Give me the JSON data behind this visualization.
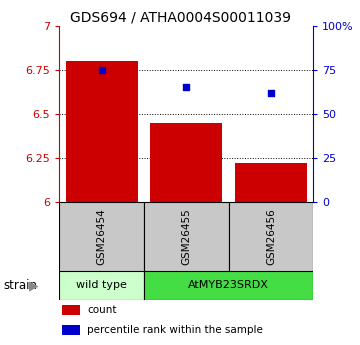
{
  "title": "GDS694 / ATHA0004S00011039",
  "samples": [
    "GSM26454",
    "GSM26455",
    "GSM26456"
  ],
  "bar_values": [
    6.8,
    6.45,
    6.22
  ],
  "percentile_values": [
    75,
    65,
    62
  ],
  "ylim_left": [
    6,
    7
  ],
  "ylim_right": [
    0,
    100
  ],
  "yticks_left": [
    6,
    6.25,
    6.5,
    6.75,
    7
  ],
  "ytick_labels_left": [
    "6",
    "6.25",
    "6.5",
    "6.75",
    "7"
  ],
  "yticks_right": [
    0,
    25,
    50,
    75,
    100
  ],
  "ytick_labels_right": [
    "0",
    "25",
    "50",
    "75",
    "100%"
  ],
  "bar_color": "#cc0000",
  "percentile_color": "#0000cc",
  "bar_width": 0.85,
  "group_labels": [
    "wild type",
    "AtMYB23SRDX"
  ],
  "group_colors": [
    "#ccffcc",
    "#44dd44"
  ],
  "strain_label": "strain",
  "legend_items": [
    "count",
    "percentile rank within the sample"
  ],
  "legend_colors": [
    "#cc0000",
    "#0000cc"
  ],
  "grid_color": "black",
  "grid_linestyle": "dotted",
  "bg_color": "#ffffff"
}
